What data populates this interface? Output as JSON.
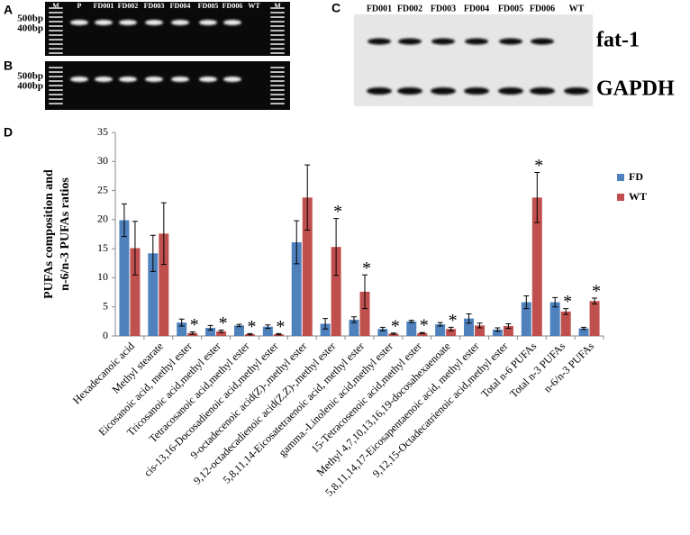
{
  "panels": {
    "a": "A",
    "b": "B",
    "c": "C",
    "d": "D"
  },
  "gel_a": {
    "lanes": [
      "M",
      "P",
      "FD001",
      "FD002",
      "FD003",
      "FD004",
      "FD005",
      "FD006",
      "WT",
      "M"
    ],
    "markers": [
      "500bp",
      "400bp"
    ]
  },
  "gel_b": {
    "markers": [
      "500bp",
      "400bp"
    ]
  },
  "blot_c": {
    "lanes": [
      "FD001",
      "FD002",
      "FD003",
      "FD004",
      "FD005",
      "FD006",
      "WT"
    ],
    "bands": [
      "fat-1",
      "GAPDH"
    ]
  },
  "chart_data": {
    "type": "bar",
    "y_label": [
      "PUFAs composition and",
      "n-6/n-3 PUFAs ratios"
    ],
    "categories": [
      "Hexadecanoic acid",
      "Methyl stearate",
      "Eicosanoic acid, methyl ester",
      "Tricosanoic acid,methyl ester",
      "Tetracosanoic acid,methyl ester",
      "cis-13,16-Docosadienoic acid,methyl ester",
      "9-octadecenoic acid(Z)-,methyl ester",
      "9,12-octadecadienoic acid(Z,Z)-,methyl ester",
      "5,8,11,14-Eicosatetraenoic acid, methyl ester",
      "gamma.-Linolenic acid,methyl ester",
      "15-Tetracosenoic acid,methyl ester",
      "Methyl 4,7,10,13,16,19-docosahexaenoate",
      "5,8,11,14,17-Eicosapentaenoic acid, methyl ester",
      "9,12,15-Octadecatrienoic acid,methyl ester",
      "Total n-6 PUFAs",
      "Total n-3 PUFAs",
      "n-6/n-3 PUFAs"
    ],
    "series": [
      {
        "name": "FD",
        "color": "#4f81bd",
        "values": [
          19.9,
          14.2,
          2.3,
          1.4,
          1.8,
          1.6,
          16.1,
          2.1,
          2.8,
          1.2,
          2.5,
          2.0,
          3.0,
          1.1,
          5.8,
          5.8,
          1.3
        ],
        "errors": [
          2.8,
          3.1,
          0.6,
          0.4,
          0.2,
          0.3,
          3.7,
          0.9,
          0.5,
          0.3,
          0.2,
          0.3,
          0.8,
          0.3,
          1.1,
          0.8,
          0.2
        ]
      },
      {
        "name": "WT",
        "color": "#c0504d",
        "values": [
          15.1,
          17.6,
          0.5,
          0.8,
          0.3,
          0.3,
          23.8,
          15.3,
          7.6,
          0.4,
          0.5,
          1.2,
          1.8,
          1.7,
          23.8,
          4.2,
          6.0
        ],
        "errors": [
          4.6,
          5.3,
          0.2,
          0.2,
          0.1,
          0.1,
          5.6,
          4.9,
          2.9,
          0.1,
          0.1,
          0.3,
          0.4,
          0.4,
          4.3,
          0.5,
          0.5
        ]
      }
    ],
    "significance_labels": [
      null,
      null,
      "*",
      "*",
      "*",
      "*",
      null,
      "*",
      "*",
      "*",
      "*",
      "*",
      null,
      null,
      "*",
      "*",
      "*"
    ],
    "ylim": [
      0,
      35
    ],
    "yticks": [
      0,
      5,
      10,
      15,
      20,
      25,
      30,
      35
    ],
    "grid": false,
    "legend": "right"
  }
}
